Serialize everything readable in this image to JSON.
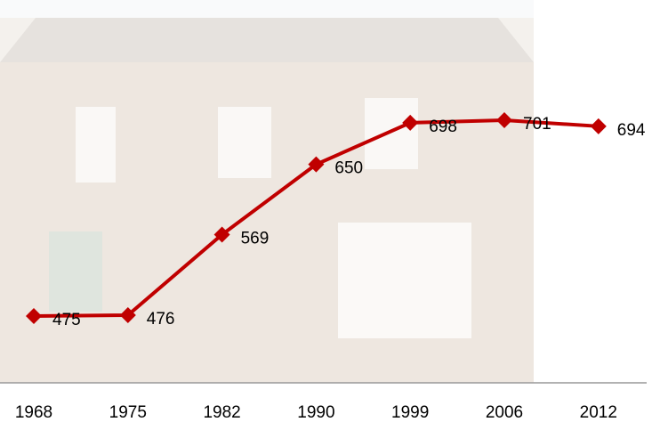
{
  "chart_data": {
    "type": "line",
    "categories": [
      "1968",
      "1975",
      "1982",
      "1990",
      "1999",
      "2006",
      "2012"
    ],
    "series": [
      {
        "color": "#c00000",
        "values": [
          475,
          476,
          569,
          650,
          698,
          701,
          694
        ]
      }
    ]
  }
}
